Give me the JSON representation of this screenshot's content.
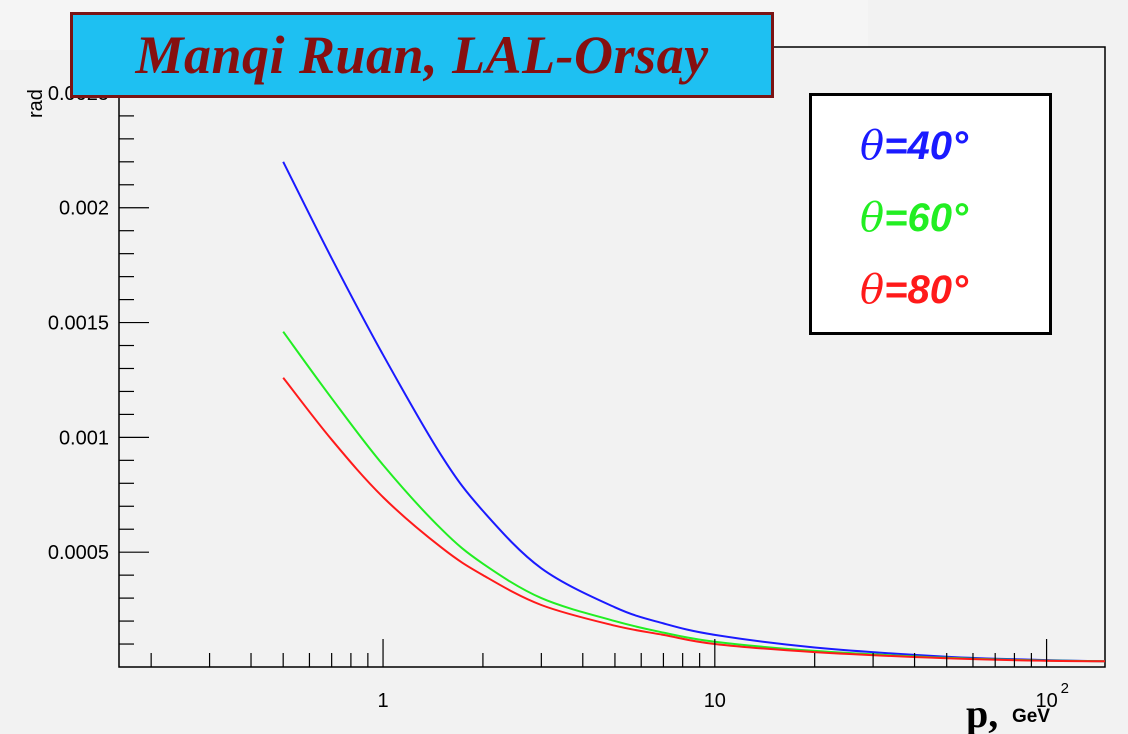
{
  "banner": {
    "text": "Manqi Ruan, LAL-Orsay"
  },
  "chart_data": {
    "type": "line",
    "xscale": "log",
    "xlim": [
      0.16,
      150
    ],
    "ylim": [
      0,
      0.0027
    ],
    "xlabel_main": "p,",
    "xlabel_sub": "GeV",
    "ylabel": "rad",
    "y_ticks": [
      {
        "value": 0.0005,
        "label": "0.0005"
      },
      {
        "value": 0.001,
        "label": "0.001"
      },
      {
        "value": 0.0015,
        "label": "0.0015"
      },
      {
        "value": 0.002,
        "label": "0.002"
      },
      {
        "value": 0.0025,
        "label": "0.0025"
      }
    ],
    "x_ticks": [
      {
        "value": 1,
        "label": "1"
      },
      {
        "value": 10,
        "label": "10"
      },
      {
        "value": 100,
        "label": "10",
        "exponent": "2"
      }
    ],
    "grid": false,
    "legend_position": "top-right",
    "series": [
      {
        "name": "θ=40°",
        "legend_symbol": "θ",
        "legend_value": "=40°",
        "color": "#1a1aff",
        "x": [
          0.5,
          0.7,
          1,
          1.5,
          2,
          3,
          5,
          7,
          10,
          20,
          50,
          100,
          150
        ],
        "y": [
          0.0022,
          0.00178,
          0.00136,
          0.00092,
          0.00068,
          0.00043,
          0.00026,
          0.00019,
          0.00014,
          8.5e-05,
          4.5e-05,
          3e-05,
          2.5e-05
        ]
      },
      {
        "name": "θ=60°",
        "legend_symbol": "θ",
        "legend_value": "=60°",
        "color": "#22ee22",
        "x": [
          0.5,
          0.7,
          1,
          1.5,
          2,
          3,
          5,
          7,
          10,
          20,
          50,
          100,
          150
        ],
        "y": [
          0.00146,
          0.00117,
          0.00088,
          0.0006,
          0.00045,
          0.0003,
          0.0002,
          0.00015,
          0.00011,
          7e-05,
          4e-05,
          2.8e-05,
          2.5e-05
        ]
      },
      {
        "name": "θ=80°",
        "legend_symbol": "θ",
        "legend_value": "=80°",
        "color": "#ff1a1a",
        "x": [
          0.5,
          0.7,
          1,
          1.5,
          2,
          3,
          5,
          7,
          10,
          20,
          50,
          100,
          150
        ],
        "y": [
          0.00126,
          0.00099,
          0.00074,
          0.00052,
          0.0004,
          0.00027,
          0.00018,
          0.00014,
          0.0001,
          6.5e-05,
          3.8e-05,
          2.7e-05,
          2.5e-05
        ]
      }
    ]
  }
}
